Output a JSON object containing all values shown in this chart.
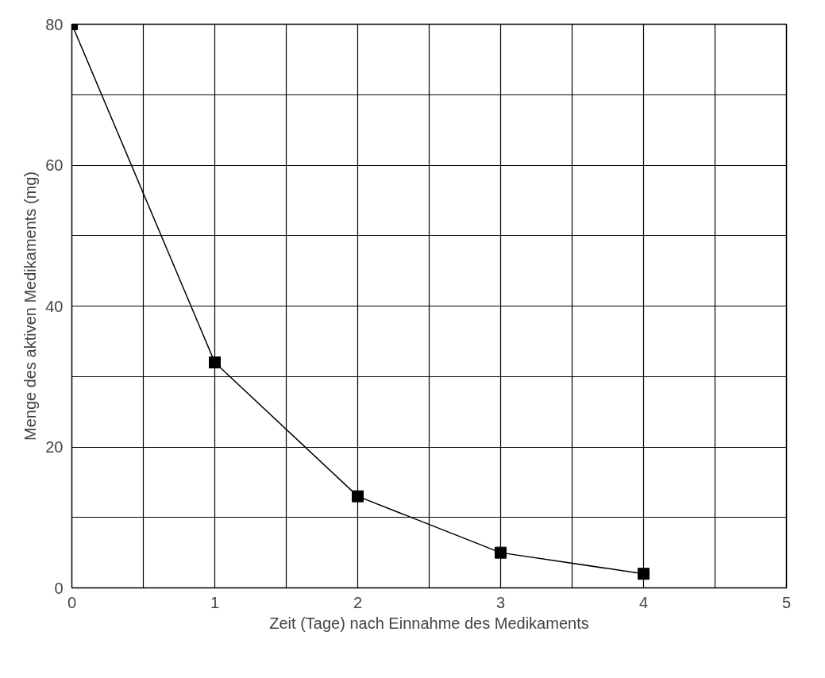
{
  "chart_data": {
    "type": "line",
    "xlabel": "Zeit (Tage) nach Einnahme des Medikaments",
    "ylabel": "Menge des aktiven Medikaments (mg)",
    "x": [
      0,
      1,
      2,
      3,
      4
    ],
    "series": [
      {
        "color": "#000000",
        "values": [
          80,
          32,
          13,
          5,
          2
        ]
      }
    ],
    "xlim": [
      0,
      5
    ],
    "ylim": [
      0,
      80
    ],
    "xticks": [
      0,
      {
        "value": 0.5,
        "label": null
      },
      1,
      {
        "value": 1.5,
        "label": null
      },
      2,
      {
        "value": 2.5,
        "label": null
      },
      3,
      {
        "value": 3.5,
        "label": null
      },
      4,
      {
        "value": 4.5,
        "label": null
      },
      5
    ],
    "yticks": [
      0,
      {
        "value": 10,
        "label": null
      },
      20,
      {
        "value": 30,
        "label": null
      },
      40,
      {
        "value": 50,
        "label": null
      },
      60,
      {
        "value": 70,
        "label": null
      },
      80
    ],
    "grid": true,
    "marker": "square",
    "line_style": "solid"
  }
}
